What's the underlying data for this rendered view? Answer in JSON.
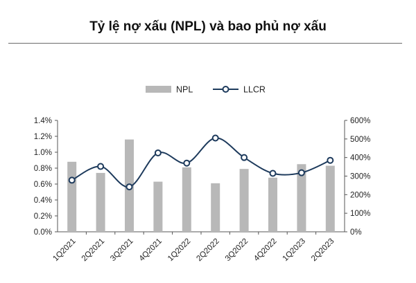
{
  "title": "Tỷ lệ nợ xấu (NPL) và bao phủ nợ xấu",
  "chart_data": {
    "type": "bar",
    "categories": [
      "1Q2021",
      "2Q2021",
      "3Q2021",
      "4Q2021",
      "1Q2022",
      "2Q2022",
      "3Q2022",
      "4Q2022",
      "1Q2023",
      "2Q2023"
    ],
    "series": [
      {
        "name": "NPL",
        "type": "bar",
        "axis": "left",
        "values": [
          0.88,
          0.74,
          1.16,
          0.63,
          0.81,
          0.61,
          0.79,
          0.68,
          0.85,
          0.83
        ]
      },
      {
        "name": "LLCR",
        "type": "line",
        "axis": "right",
        "values": [
          278,
          352,
          242,
          425,
          370,
          505,
          400,
          315,
          318,
          385
        ]
      }
    ],
    "y_left": {
      "min": 0,
      "max": 1.4,
      "ticks": [
        "0.0%",
        "0.2%",
        "0.4%",
        "0.6%",
        "0.8%",
        "1.0%",
        "1.2%",
        "1.4%"
      ]
    },
    "y_right": {
      "min": 0,
      "max": 600,
      "ticks": [
        "0%",
        "100%",
        "200%",
        "300%",
        "400%",
        "500%",
        "600%"
      ]
    },
    "legend_position": "top-center",
    "grid": false,
    "colors": {
      "bar": "#b8b8b8",
      "line": "#1d3a5c",
      "marker_fill": "#ffffff",
      "axis": "#555555"
    }
  }
}
